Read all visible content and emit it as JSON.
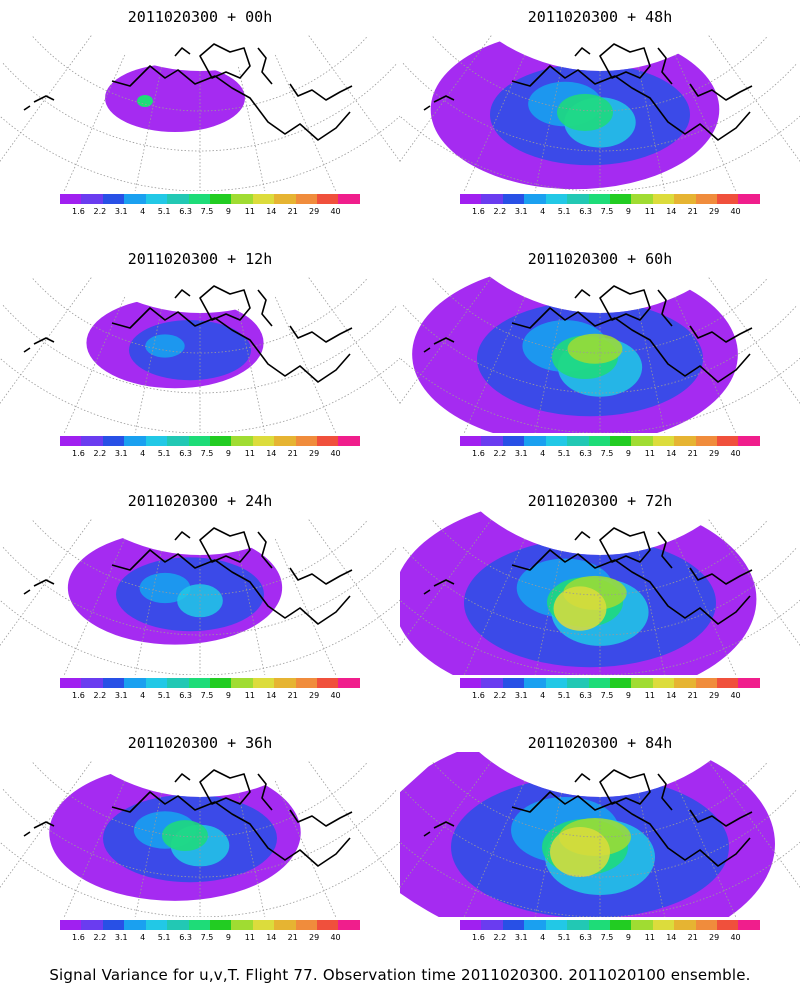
{
  "figure": {
    "caption": "Signal Variance for u,v,T. Flight 77. Observation time 2011020300. 2011020100 ensemble."
  },
  "colorbar": {
    "labels": [
      "1.6",
      "2.2",
      "3.1",
      "4",
      "5.1",
      "6.3",
      "7.5",
      "9",
      "11",
      "14",
      "21",
      "29",
      "40"
    ],
    "colors": [
      "#a020f0",
      "#6a3cf0",
      "#2850e6",
      "#1aa0f0",
      "#22c8e6",
      "#22c8b4",
      "#1edc78",
      "#22cc22",
      "#a0dc32",
      "#dcdc3c",
      "#e6b432",
      "#f08c3c",
      "#f0503c",
      "#f01e8c"
    ]
  },
  "panels": [
    {
      "title": "2011020300 + 00h",
      "hour": 0
    },
    {
      "title": "2011020300 + 48h",
      "hour": 48
    },
    {
      "title": "2011020300 + 12h",
      "hour": 12
    },
    {
      "title": "2011020300 + 60h",
      "hour": 60
    },
    {
      "title": "2011020300 + 24h",
      "hour": 24
    },
    {
      "title": "2011020300 + 72h",
      "hour": 72
    },
    {
      "title": "2011020300 + 36h",
      "hour": 36
    },
    {
      "title": "2011020300 + 84h",
      "hour": 84
    }
  ]
}
